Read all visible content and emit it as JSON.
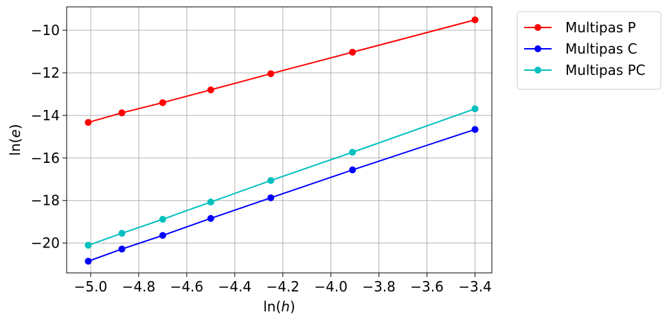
{
  "chart_data": {
    "type": "line",
    "xlabel_prefix": "ln(",
    "xlabel_var": "h",
    "xlabel_suffix": ")",
    "ylabel_prefix": "ln(",
    "ylabel_var": "e",
    "ylabel_suffix": ")",
    "xlim": [
      -5.1,
      -3.33
    ],
    "ylim": [
      -21.4,
      -8.9
    ],
    "x_ticks": [
      -5.0,
      -4.8,
      -4.6,
      -4.4,
      -4.2,
      -4.0,
      -3.8,
      -3.6,
      -3.4
    ],
    "x_tick_labels": [
      "−5.0",
      "−4.8",
      "−4.6",
      "−4.4",
      "−4.2",
      "−4.0",
      "−3.8",
      "−3.6",
      "−3.4"
    ],
    "y_ticks": [
      -20,
      -18,
      -16,
      -14,
      -12,
      -10
    ],
    "y_tick_labels": [
      "−20",
      "−18",
      "−16",
      "−14",
      "−12",
      "−10"
    ],
    "grid": true,
    "legend_position": "outside-right-top",
    "x": [
      -5.01,
      -4.87,
      -4.7,
      -4.5,
      -4.25,
      -3.91,
      -3.4
    ],
    "series": [
      {
        "name": "Multipas P",
        "color": "#ff0000",
        "values": [
          -14.33,
          -13.88,
          -13.4,
          -12.8,
          -12.04,
          -11.03,
          -9.51
        ]
      },
      {
        "name": "Multipas C",
        "color": "#0000ff",
        "values": [
          -20.85,
          -20.28,
          -19.64,
          -18.84,
          -17.87,
          -16.56,
          -14.66
        ]
      },
      {
        "name": "Multipas PC",
        "color": "#00bfbf",
        "values": [
          -20.1,
          -19.54,
          -18.88,
          -18.07,
          -17.06,
          -15.73,
          -13.69
        ]
      }
    ]
  }
}
